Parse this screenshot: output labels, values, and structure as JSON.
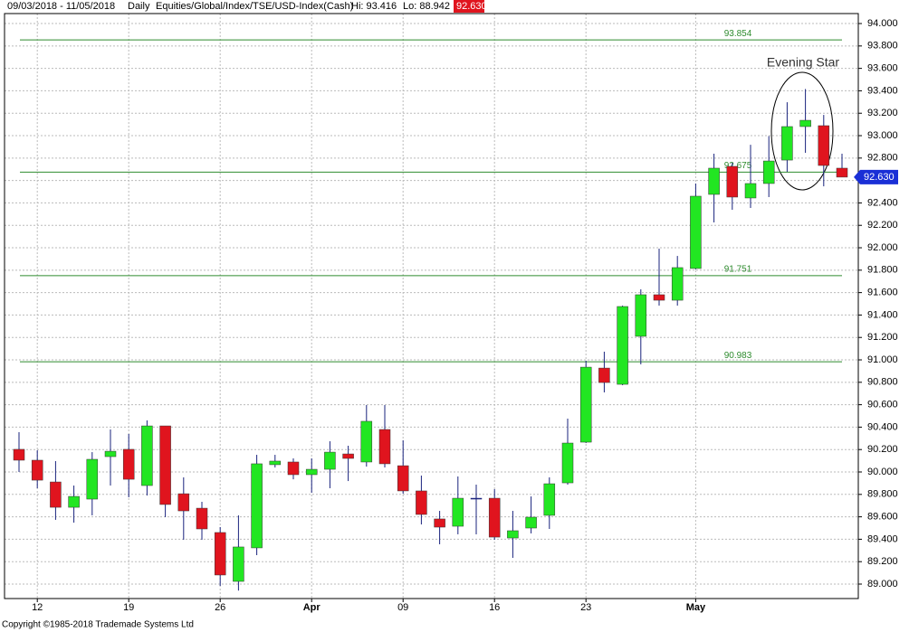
{
  "chart_data": {
    "type": "candlestick",
    "header": {
      "range": "09/03/2018 - 11/05/2018",
      "period": "Daily",
      "symbol": "Equities/Global/Index/TSE/USD-Index(Cash)",
      "hi": "Hi: 93.416",
      "lo": "Lo: 88.942",
      "last": "92.630"
    },
    "copyright": "Copyright ©1985-2018 Trademade Systems Ltd",
    "annotation": "Evening Star",
    "categories": [
      null,
      "12",
      null,
      null,
      null,
      null,
      "19",
      null,
      null,
      null,
      null,
      "26",
      null,
      null,
      null,
      null,
      "Apr",
      null,
      null,
      null,
      null,
      "09",
      null,
      null,
      null,
      null,
      "16",
      null,
      null,
      null,
      null,
      "23",
      null,
      null,
      null,
      null,
      null,
      "May",
      null,
      null,
      null,
      null,
      null,
      null,
      null,
      null
    ],
    "open": [
      90.202,
      90.105,
      89.911,
      89.685,
      89.758,
      90.137,
      90.202,
      89.879,
      90.411,
      89.806,
      89.677,
      89.46,
      89.024,
      89.323,
      90.065,
      90.089,
      89.976,
      90.024,
      90.161,
      90.089,
      90.379,
      90.056,
      89.831,
      89.581,
      89.516,
      89.766,
      89.766,
      89.411,
      89.5,
      89.613,
      89.903,
      90.266,
      90.927,
      90.782,
      91.21,
      91.581,
      91.532,
      91.815,
      92.476,
      92.726,
      92.444,
      92.573,
      92.782,
      93.081,
      93.089,
      92.71
    ],
    "high": [
      90.355,
      90.194,
      90.097,
      89.879,
      90.177,
      90.379,
      90.339,
      90.46,
      90.411,
      89.952,
      89.734,
      89.508,
      89.613,
      90.153,
      90.153,
      90.121,
      90.121,
      90.274,
      90.234,
      90.597,
      90.597,
      90.282,
      89.968,
      89.653,
      89.96,
      89.887,
      89.847,
      89.653,
      89.782,
      89.952,
      90.476,
      90.992,
      91.073,
      91.484,
      91.629,
      91.992,
      91.927,
      92.573,
      92.839,
      92.758,
      92.919,
      92.996,
      93.298,
      93.416,
      93.185,
      92.839
    ],
    "low": [
      90.0,
      89.855,
      89.573,
      89.548,
      89.613,
      89.879,
      89.774,
      89.79,
      89.597,
      89.395,
      89.395,
      88.984,
      88.942,
      89.258,
      90.04,
      89.935,
      89.815,
      89.855,
      89.919,
      90.048,
      90.04,
      89.806,
      89.532,
      89.355,
      89.444,
      89.444,
      89.395,
      89.234,
      89.452,
      89.492,
      89.887,
      90.258,
      90.71,
      90.774,
      90.96,
      91.484,
      91.484,
      91.806,
      92.226,
      92.339,
      92.355,
      92.452,
      92.677,
      92.847,
      92.548,
      92.63
    ],
    "close": [
      90.105,
      89.927,
      89.685,
      89.782,
      90.113,
      90.185,
      89.935,
      90.411,
      89.71,
      89.653,
      89.492,
      89.081,
      89.331,
      90.073,
      90.097,
      89.976,
      90.024,
      90.177,
      90.121,
      90.452,
      90.073,
      89.831,
      89.621,
      89.508,
      89.766,
      89.766,
      89.419,
      89.476,
      89.597,
      89.895,
      90.258,
      90.935,
      90.798,
      91.476,
      91.581,
      91.532,
      91.823,
      92.46,
      92.71,
      92.452,
      92.573,
      92.774,
      93.081,
      93.137,
      92.734,
      92.63
    ],
    "up_color": "#22e622",
    "down_color": "#e0141e",
    "doji_color": "#1a237e",
    "levels": [
      {
        "value": 93.854,
        "label": "93.854"
      },
      {
        "value": 92.675,
        "label": "92.675"
      },
      {
        "value": 91.751,
        "label": "91.751"
      },
      {
        "value": 90.983,
        "label": "90.983"
      }
    ],
    "level_color": "#2e8b2e",
    "last_price": {
      "value": 92.63,
      "label": "92.630"
    },
    "ylim": [
      88.871,
      94.089
    ],
    "yticks": [
      {
        "value": 89,
        "label": "89.000"
      },
      {
        "value": 89.2,
        "label": "89.200"
      },
      {
        "value": 89.4,
        "label": "89.400"
      },
      {
        "value": 89.6,
        "label": "89.600"
      },
      {
        "value": 89.8,
        "label": "89.800"
      },
      {
        "value": 90,
        "label": "90.000"
      },
      {
        "value": 90.2,
        "label": "90.200"
      },
      {
        "value": 90.4,
        "label": "90.400"
      },
      {
        "value": 90.6,
        "label": "90.600"
      },
      {
        "value": 90.8,
        "label": "90.800"
      },
      {
        "value": 91,
        "label": "91.000"
      },
      {
        "value": 91.2,
        "label": "91.200"
      },
      {
        "value": 91.4,
        "label": "91.400"
      },
      {
        "value": 91.6,
        "label": "91.600"
      },
      {
        "value": 91.8,
        "label": "91.800"
      },
      {
        "value": 92,
        "label": "92.000"
      },
      {
        "value": 92.2,
        "label": "92.200"
      },
      {
        "value": 92.4,
        "label": "92.400"
      },
      {
        "value": 92.6,
        "label": "92.600"
      },
      {
        "value": 92.8,
        "label": "92.800"
      },
      {
        "value": 93,
        "label": "93.000"
      },
      {
        "value": 93.2,
        "label": "93.200"
      },
      {
        "value": 93.4,
        "label": "93.400"
      },
      {
        "value": 93.6,
        "label": "93.600"
      },
      {
        "value": 93.8,
        "label": "93.800"
      },
      {
        "value": 94,
        "label": "94.000"
      }
    ],
    "grid": true
  }
}
